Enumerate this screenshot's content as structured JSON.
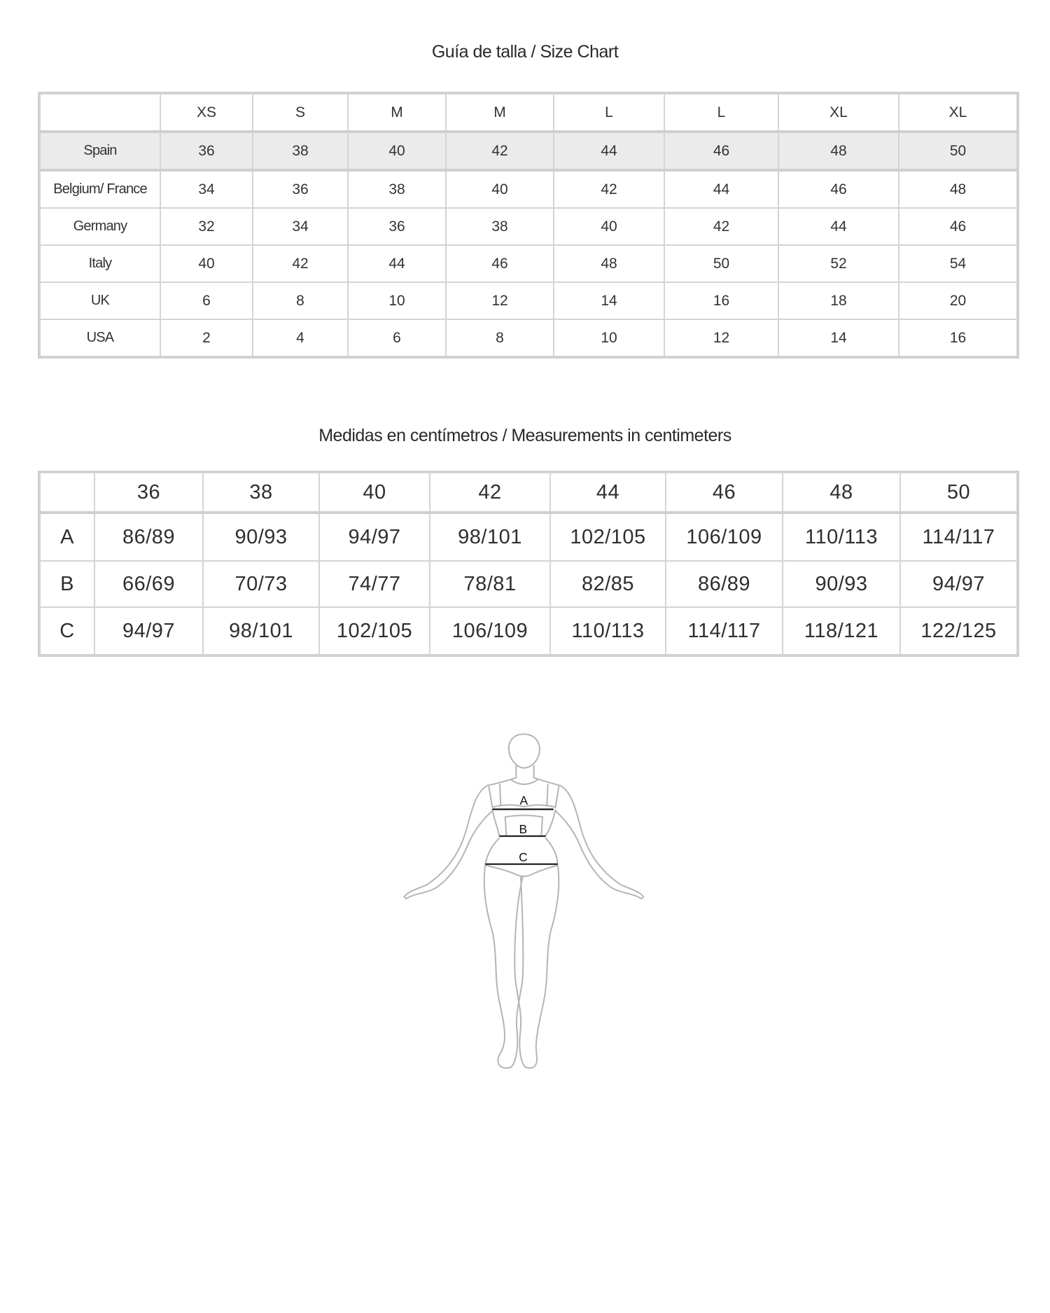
{
  "size_chart": {
    "title": "Guía de talla / Size Chart",
    "sizes": [
      "XS",
      "S",
      "M",
      "M",
      "L",
      "L",
      "XL",
      "XL"
    ],
    "rows": [
      {
        "country": "Spain",
        "values": [
          "36",
          "38",
          "40",
          "42",
          "44",
          "46",
          "48",
          "50"
        ],
        "highlight": true
      },
      {
        "country": "Belgium/ France",
        "values": [
          "34",
          "36",
          "38",
          "40",
          "42",
          "44",
          "46",
          "48"
        ]
      },
      {
        "country": "Germany",
        "values": [
          "32",
          "34",
          "36",
          "38",
          "40",
          "42",
          "44",
          "46"
        ]
      },
      {
        "country": "Italy",
        "values": [
          "40",
          "42",
          "44",
          "46",
          "48",
          "50",
          "52",
          "54"
        ]
      },
      {
        "country": "UK",
        "values": [
          "6",
          "8",
          "10",
          "12",
          "14",
          "16",
          "18",
          "20"
        ]
      },
      {
        "country": "USA",
        "values": [
          "2",
          "4",
          "6",
          "8",
          "10",
          "12",
          "14",
          "16"
        ]
      }
    ],
    "highlight_color": "#ebebec"
  },
  "measurements": {
    "title": "Medidas en centímetros / Measurements in centimeters",
    "sizes": [
      "36",
      "38",
      "40",
      "42",
      "44",
      "46",
      "48",
      "50"
    ],
    "rows": [
      {
        "label": "A",
        "values": [
          "86/89",
          "90/93",
          "94/97",
          "98/101",
          "102/105",
          "106/109",
          "110/113",
          "114/117"
        ]
      },
      {
        "label": "B",
        "values": [
          "66/69",
          "70/73",
          "74/77",
          "78/81",
          "82/85",
          "86/89",
          "90/93",
          "94/97"
        ]
      },
      {
        "label": "C",
        "values": [
          "94/97",
          "98/101",
          "102/105",
          "106/109",
          "110/113",
          "114/117",
          "118/121",
          "122/125"
        ]
      }
    ]
  },
  "figure": {
    "labels": {
      "a": "A",
      "b": "B",
      "c": "C"
    }
  }
}
